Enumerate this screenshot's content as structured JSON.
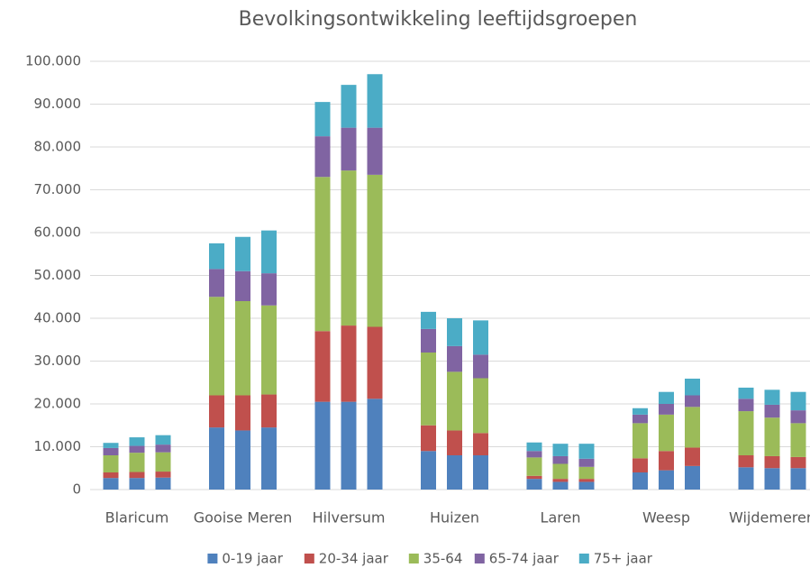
{
  "chart_data": {
    "type": "stacked_bar",
    "title": "Bevolkingsontwikkeling leeftijdsgroepen",
    "categories": [
      null,
      "Blaricum",
      null,
      null,
      "Gooise Meren",
      null,
      null,
      "Hilversum",
      null,
      null,
      "Huizen",
      null,
      null,
      "Laren",
      null,
      null,
      "Weesp",
      null,
      null,
      "Wijdemeren",
      null
    ],
    "series": [
      {
        "name": "0-19 jaar",
        "color": "#4f81bd",
        "values": [
          2700,
          2700,
          2800,
          14500,
          13800,
          14500,
          20500,
          20500,
          21200,
          9000,
          8000,
          8000,
          2500,
          1800,
          1800,
          4000,
          4500,
          5500,
          5200,
          5000,
          5000
        ]
      },
      {
        "name": "20-34 jaar",
        "color": "#c0504d",
        "values": [
          1300,
          1400,
          1400,
          7500,
          8200,
          7700,
          16500,
          17800,
          16800,
          6000,
          5800,
          5200,
          700,
          700,
          700,
          3300,
          4500,
          4300,
          2800,
          2800,
          2600
        ]
      },
      {
        "name": "35-64",
        "color": "#9bbb59",
        "values": [
          4000,
          4500,
          4500,
          23000,
          22000,
          20800,
          36000,
          36200,
          35500,
          17000,
          13700,
          12800,
          4300,
          3500,
          2800,
          8200,
          8500,
          9500,
          10300,
          9000,
          7900
        ]
      },
      {
        "name": "65-74 jaar",
        "color": "#8064a2",
        "values": [
          1700,
          1600,
          1800,
          6500,
          7000,
          7500,
          9500,
          10000,
          11000,
          5500,
          6000,
          5500,
          1500,
          1800,
          1900,
          2000,
          2500,
          2700,
          2900,
          3000,
          3000
        ]
      },
      {
        "name": "75+ jaar",
        "color": "#4bacc6",
        "values": [
          1200,
          2000,
          2200,
          6000,
          8000,
          10000,
          8000,
          10000,
          12500,
          4000,
          6500,
          8000,
          2000,
          2900,
          3500,
          1500,
          2800,
          3900,
          2600,
          3500,
          4300
        ]
      }
    ],
    "ylim": [
      0,
      100000
    ],
    "yticks": [
      0,
      {
        "value": 10000,
        "label": "10.000"
      },
      {
        "value": 20000,
        "label": "20.000"
      },
      {
        "value": 30000,
        "label": "30.000"
      },
      {
        "value": 40000,
        "label": "40.000"
      },
      {
        "value": 50000,
        "label": "50.000"
      },
      {
        "value": 60000,
        "label": "60.000"
      },
      {
        "value": 70000,
        "label": "70.000"
      },
      {
        "value": 80000,
        "label": "80.000"
      },
      {
        "value": 90000,
        "label": "90.000"
      },
      {
        "value": 100000,
        "label": "100.000"
      }
    ],
    "grid": true,
    "legend": "bottom"
  }
}
